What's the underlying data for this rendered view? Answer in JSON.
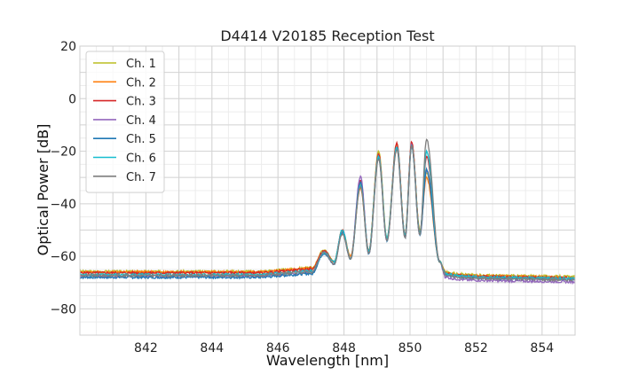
{
  "chart_data": {
    "type": "line",
    "title": "D4414 V20185 Reception Test",
    "xlabel": "Wavelength [nm]",
    "ylabel": "Optical Power [dB]",
    "xlim": [
      840.0,
      855.0
    ],
    "ylim": [
      -90,
      20
    ],
    "xticks": [
      842,
      844,
      846,
      848,
      850,
      852,
      854
    ],
    "yticks": [
      20,
      0,
      -20,
      -40,
      -60,
      -80
    ],
    "grid": true,
    "minor_grid": true,
    "legend": "top-left",
    "peak_x": [
      847.4,
      847.95,
      848.5,
      849.05,
      849.6,
      850.05,
      850.5
    ],
    "dip_x": [
      847.7,
      848.2,
      848.75,
      849.3,
      849.85,
      850.3
    ],
    "series": [
      {
        "name": "Ch. 1",
        "color": "#bcbd22",
        "floor_left": -65.8,
        "floor_right": -67.0,
        "peaks": [
          -57.5,
          -50.0,
          -33.0,
          -20.0,
          -17.0,
          -17.0,
          -28.0
        ],
        "dips": [
          -62,
          -60,
          -58,
          -53,
          -52,
          -50
        ]
      },
      {
        "name": "Ch. 2",
        "color": "#ff7f0e",
        "floor_left": -66.0,
        "floor_right": -67.3,
        "peaks": [
          -58.0,
          -50.5,
          -34.0,
          -21.0,
          -17.5,
          -17.0,
          -30.0
        ],
        "dips": [
          -62,
          -60,
          -58,
          -54,
          -52,
          -51
        ]
      },
      {
        "name": "Ch. 3",
        "color": "#d62728",
        "floor_left": -66.3,
        "floor_right": -67.5,
        "peaks": [
          -58.0,
          -50.0,
          -31.0,
          -21.0,
          -17.0,
          -16.5,
          -22.0
        ],
        "dips": [
          -62,
          -61,
          -58,
          -54,
          -52,
          -51
        ]
      },
      {
        "name": "Ch. 4",
        "color": "#9467bd",
        "floor_left": -67.5,
        "floor_right": -69.0,
        "peaks": [
          -58.5,
          -50.0,
          -29.5,
          -22.0,
          -18.5,
          -17.5,
          -27.5
        ],
        "dips": [
          -63,
          -61,
          -59,
          -54,
          -53,
          -52
        ]
      },
      {
        "name": "Ch. 5",
        "color": "#1f77b4",
        "floor_left": -68.0,
        "floor_right": -68.0,
        "peaks": [
          -59.0,
          -51.0,
          -32.0,
          -22.5,
          -18.5,
          -18.0,
          -27.0
        ],
        "dips": [
          -63,
          -61,
          -59,
          -54,
          -53,
          -52
        ]
      },
      {
        "name": "Ch. 6",
        "color": "#17becf",
        "floor_left": -67.0,
        "floor_right": -67.7,
        "peaks": [
          -58.5,
          -50.0,
          -33.0,
          -22.0,
          -18.5,
          -18.0,
          -20.0
        ],
        "dips": [
          -62,
          -61,
          -58,
          -53,
          -52,
          -51
        ]
      },
      {
        "name": "Ch. 7",
        "color": "#7f7f7f",
        "floor_left": -67.3,
        "floor_right": -68.2,
        "peaks": [
          -58.5,
          -51.5,
          -33.5,
          -23.0,
          -19.5,
          -18.0,
          -15.5
        ],
        "dips": [
          -63,
          -61,
          -59,
          -54,
          -53,
          -52
        ]
      }
    ]
  }
}
